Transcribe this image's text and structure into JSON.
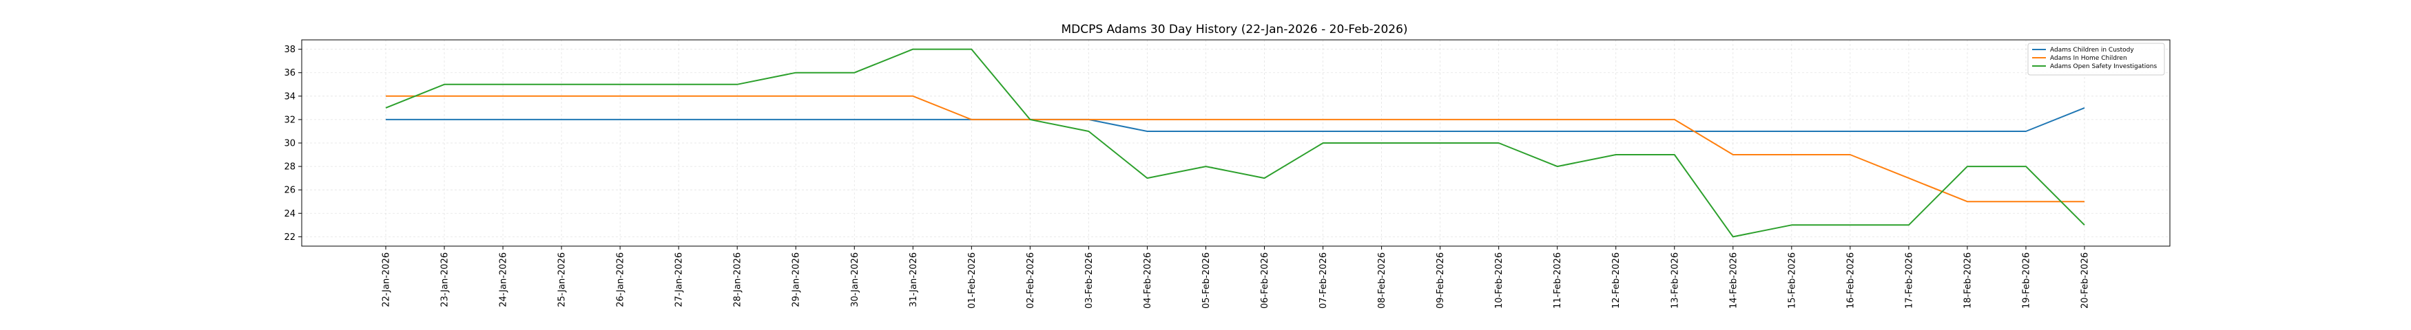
{
  "chart_data": {
    "type": "line",
    "title": "MDCPS Adams 30 Day History (22-Jan-2026 - 20-Feb-2026)",
    "xlabel": "",
    "ylabel": "",
    "grid": true,
    "legend_position": "top-right",
    "ylim": [
      21.2,
      38.8
    ],
    "yticks": [
      22,
      24,
      26,
      28,
      30,
      32,
      34,
      36,
      38
    ],
    "x": [
      "22-Jan-2026",
      "23-Jan-2026",
      "24-Jan-2026",
      "25-Jan-2026",
      "26-Jan-2026",
      "27-Jan-2026",
      "28-Jan-2026",
      "29-Jan-2026",
      "30-Jan-2026",
      "31-Jan-2026",
      "01-Feb-2026",
      "02-Feb-2026",
      "03-Feb-2026",
      "04-Feb-2026",
      "05-Feb-2026",
      "06-Feb-2026",
      "07-Feb-2026",
      "08-Feb-2026",
      "09-Feb-2026",
      "10-Feb-2026",
      "11-Feb-2026",
      "12-Feb-2026",
      "13-Feb-2026",
      "14-Feb-2026",
      "15-Feb-2026",
      "16-Feb-2026",
      "17-Feb-2026",
      "18-Feb-2026",
      "19-Feb-2026",
      "20-Feb-2026"
    ],
    "series": [
      {
        "name": "Adams Children in Custody",
        "color": "#1f77b4",
        "values": [
          32,
          32,
          32,
          32,
          32,
          32,
          32,
          32,
          32,
          32,
          32,
          32,
          32,
          31,
          31,
          31,
          31,
          31,
          31,
          31,
          31,
          31,
          31,
          31,
          31,
          31,
          31,
          31,
          31,
          33
        ]
      },
      {
        "name": "Adams In Home Children",
        "color": "#ff7f0e",
        "values": [
          34,
          34,
          34,
          34,
          34,
          34,
          34,
          34,
          34,
          34,
          32,
          32,
          32,
          32,
          32,
          32,
          32,
          32,
          32,
          32,
          32,
          32,
          32,
          29,
          29,
          29,
          27,
          25,
          25,
          25
        ]
      },
      {
        "name": "Adams Open Safety Investigations",
        "color": "#2ca02c",
        "values": [
          33,
          35,
          35,
          35,
          35,
          35,
          35,
          36,
          36,
          38,
          38,
          32,
          31,
          27,
          28,
          27,
          30,
          30,
          30,
          30,
          28,
          29,
          29,
          22,
          23,
          23,
          23,
          28,
          28,
          23
        ]
      }
    ]
  }
}
